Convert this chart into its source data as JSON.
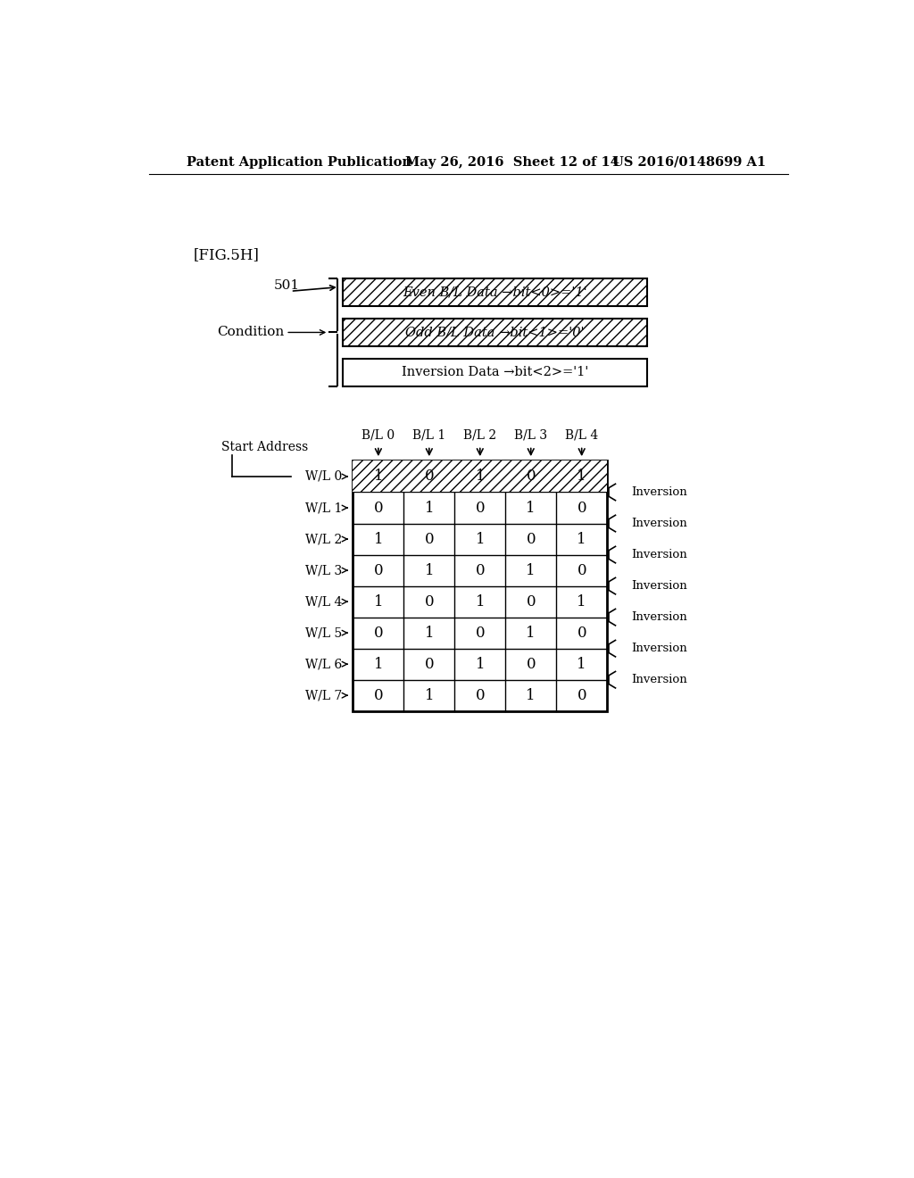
{
  "bg_color": "#ffffff",
  "header_text_left": "Patent Application Publication",
  "header_text_mid": "May 26, 2016  Sheet 12 of 14",
  "header_text_right": "US 2016/0148699 A1",
  "fig_label": "[FIG.5H]",
  "label_501": "501",
  "label_condition": "Condition",
  "box1_text": "Even B/L Data →bit<0>='1'",
  "box2_text": "Odd B/L Data →bit<1>='0'",
  "box3_text": "Inversion Data →bit<2>='1'",
  "col_headers": [
    "B/L 0",
    "B/L 1",
    "B/L 2",
    "B/L 3",
    "B/L 4"
  ],
  "row_labels": [
    "W/L 0",
    "W/L 1",
    "W/L 2",
    "W/L 3",
    "W/L 4",
    "W/L 5",
    "W/L 6",
    "W/L 7"
  ],
  "table_data": [
    [
      1,
      0,
      1,
      0,
      1
    ],
    [
      0,
      1,
      0,
      1,
      0
    ],
    [
      1,
      0,
      1,
      0,
      1
    ],
    [
      0,
      1,
      0,
      1,
      0
    ],
    [
      1,
      0,
      1,
      0,
      1
    ],
    [
      0,
      1,
      0,
      1,
      0
    ],
    [
      1,
      0,
      1,
      0,
      1
    ],
    [
      0,
      1,
      0,
      1,
      0
    ]
  ],
  "inversion_label": "Inversion",
  "start_address_label": "Start Address",
  "hatch_pattern": "///",
  "font_size_header": 10.5,
  "font_size_table": 12,
  "font_size_label": 11,
  "font_size_small": 10
}
